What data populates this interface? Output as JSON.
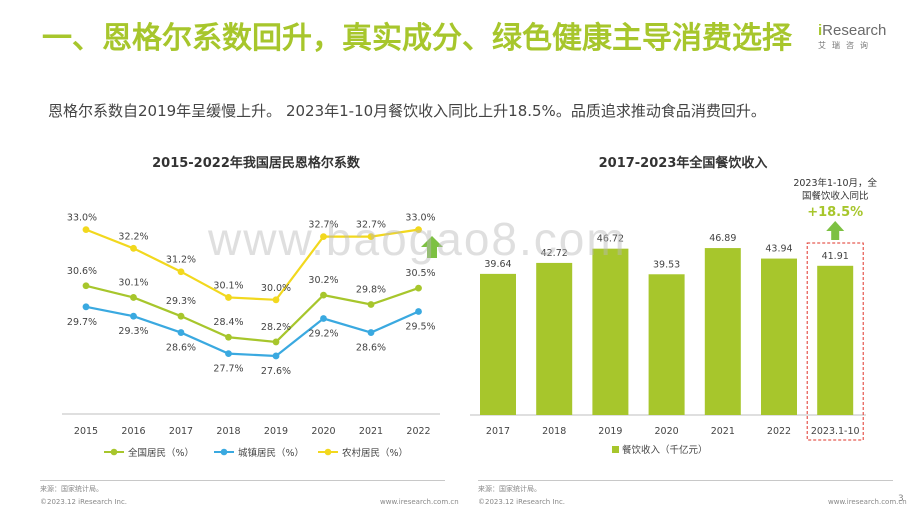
{
  "slide": {
    "title": "一、恩格尔系数回升，真实成分、绿色健康主导消费选择",
    "subtitle": "恩格尔系数自2019年呈缓慢上升。 2023年1-10月餐饮收入同比上升18.5%。品质追求推动食品消费回升。",
    "page_number": "3",
    "watermark": "www.baogao8.com"
  },
  "logo": {
    "brand_i": "i",
    "brand_rest": "Research",
    "cn": "艾瑞咨询"
  },
  "footer": {
    "source_left": "来源：国家统计局。",
    "copyright_left": "©2023.12 iResearch Inc.",
    "url_left": "www.iresearch.com.cn",
    "source_right": "来源：国家统计局。",
    "copyright_right": "©2023.12 iResearch Inc.",
    "url_right": "www.iresearch.com.cn"
  },
  "colors": {
    "accent": "#a7c62c",
    "national": "#a7c62c",
    "urban": "#3aa9e0",
    "rural": "#f2d81e",
    "arrow": "#7dc142",
    "highlight": "#e0342a"
  },
  "chart_data": [
    {
      "type": "line",
      "title": "2015-2022年我国居民恩格尔系数",
      "x": [
        "2015",
        "2016",
        "2017",
        "2018",
        "2019",
        "2020",
        "2021",
        "2022"
      ],
      "ylim": [
        27,
        33.5
      ],
      "series": [
        {
          "name": "全国居民（%）",
          "key": "national",
          "values": [
            30.6,
            30.1,
            29.3,
            28.4,
            28.2,
            30.2,
            29.8,
            30.5
          ],
          "labels": [
            "30.6%",
            "30.1%",
            "29.3%",
            "28.4%",
            "28.2%",
            "30.2%",
            "29.8%",
            "30.5%"
          ]
        },
        {
          "name": "城镇居民（%）",
          "key": "urban",
          "values": [
            29.7,
            29.3,
            28.6,
            27.7,
            27.6,
            29.2,
            28.6,
            29.5
          ],
          "labels": [
            "29.7%",
            "29.3%",
            "28.6%",
            "27.7%",
            "27.6%",
            "29.2%",
            "28.6%",
            "29.5%"
          ]
        },
        {
          "name": "农村居民（%）",
          "key": "rural",
          "values": [
            33.0,
            32.2,
            31.2,
            30.1,
            30.0,
            32.7,
            32.7,
            33.0
          ],
          "labels": [
            "33.0%",
            "32.2%",
            "31.2%",
            "30.1%",
            "30.0%",
            "32.7%",
            "32.7%",
            "33.0%"
          ]
        }
      ],
      "annotation": "up-arrow"
    },
    {
      "type": "bar",
      "title": "2017-2023年全国餐饮收入",
      "categories": [
        "2017",
        "2018",
        "2019",
        "2020",
        "2021",
        "2022",
        "2023.1-10"
      ],
      "values": [
        39.64,
        42.72,
        46.72,
        39.53,
        46.89,
        43.94,
        41.91
      ],
      "labels": [
        "39.64",
        "42.72",
        "46.72",
        "39.53",
        "46.89",
        "43.94",
        "41.91"
      ],
      "series_name": "餐饮收入（千亿元）",
      "ylim": [
        0,
        50
      ],
      "annotation": {
        "line1": "2023年1-10月，全",
        "line2": "国餐饮收入同比",
        "value": "+18.5%"
      }
    }
  ]
}
